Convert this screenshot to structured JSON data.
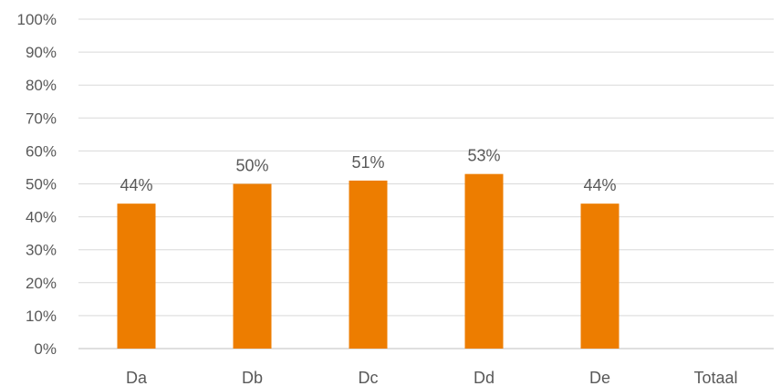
{
  "chart_data": {
    "type": "bar",
    "title": "",
    "xlabel": "",
    "ylabel": "",
    "categories": [
      "Da",
      "Db",
      "Dc",
      "Dd",
      "De",
      "Totaal"
    ],
    "values": [
      44,
      50,
      51,
      53,
      44,
      null
    ],
    "data_labels": [
      "44%",
      "50%",
      "51%",
      "53%",
      "44%",
      ""
    ],
    "ylim": [
      0,
      100
    ],
    "yticks": [
      0,
      10,
      20,
      30,
      40,
      50,
      60,
      70,
      80,
      90,
      100
    ],
    "ytick_labels": [
      "0%",
      "10%",
      "20%",
      "30%",
      "40%",
      "50%",
      "60%",
      "70%",
      "80%",
      "90%",
      "100%"
    ],
    "grid": true,
    "legend": "none",
    "bar_color": "#ED7D00"
  }
}
